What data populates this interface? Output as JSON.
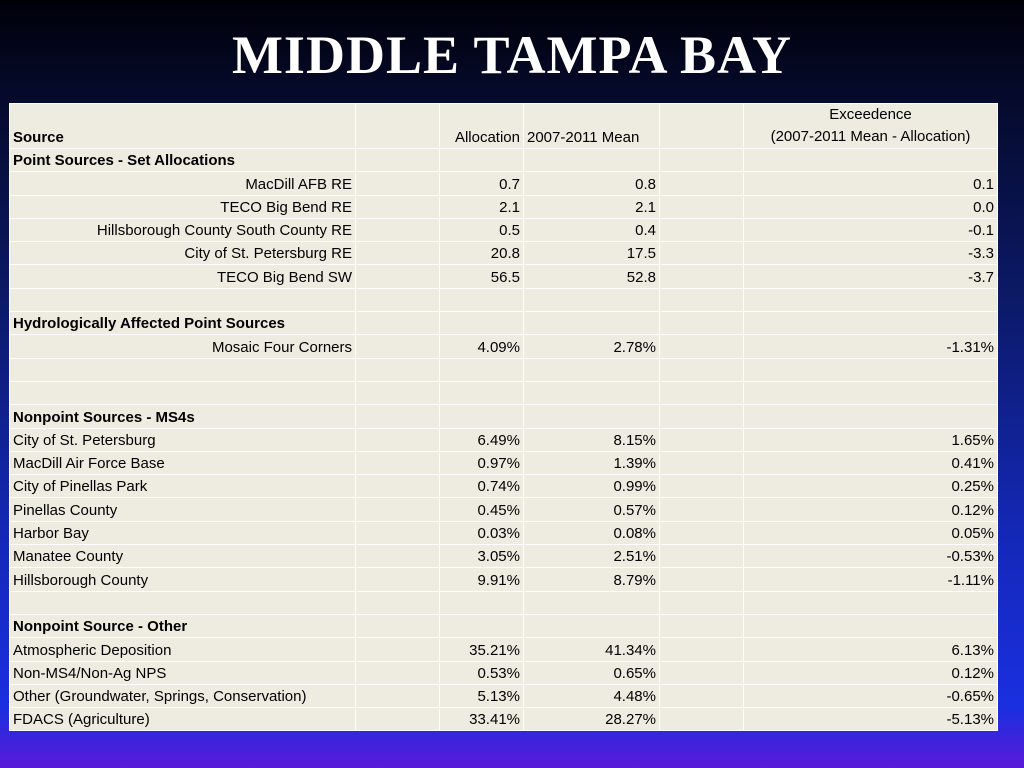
{
  "title": "MIDDLE TAMPA BAY",
  "header": {
    "source": "Source",
    "allocation": "Allocation",
    "mean": "2007-2011 Mean",
    "exceedence_line1": "Exceedence",
    "exceedence_line2": "(2007-2011 Mean - Allocation)"
  },
  "rows": [
    {
      "type": "section",
      "label": "Point Sources - Set Allocations"
    },
    {
      "type": "data",
      "align": "right",
      "label": "MacDill AFB RE",
      "allocation": "0.7",
      "mean": "0.8",
      "exceedence": "0.1"
    },
    {
      "type": "data",
      "align": "right",
      "label": "TECO Big Bend RE",
      "allocation": "2.1",
      "mean": "2.1",
      "exceedence": "0.0"
    },
    {
      "type": "data",
      "align": "right",
      "label": "Hillsborough County South County RE",
      "allocation": "0.5",
      "mean": "0.4",
      "exceedence": "-0.1"
    },
    {
      "type": "data",
      "align": "right",
      "label": "City of St. Petersburg RE",
      "allocation": "20.8",
      "mean": "17.5",
      "exceedence": "-3.3"
    },
    {
      "type": "data",
      "align": "right",
      "label": "TECO Big Bend SW",
      "allocation": "56.5",
      "mean": "52.8",
      "exceedence": "-3.7"
    },
    {
      "type": "blank"
    },
    {
      "type": "section",
      "label": "Hydrologically Affected Point Sources"
    },
    {
      "type": "data",
      "align": "right",
      "label": "Mosaic Four Corners",
      "allocation": "4.09%",
      "mean": "2.78%",
      "exceedence": "-1.31%"
    },
    {
      "type": "blank"
    },
    {
      "type": "blank"
    },
    {
      "type": "section",
      "label": "Nonpoint Sources - MS4s"
    },
    {
      "type": "data",
      "align": "left",
      "label": "City of St. Petersburg",
      "allocation": "6.49%",
      "mean": "8.15%",
      "exceedence": "1.65%"
    },
    {
      "type": "data",
      "align": "left",
      "label": "MacDill Air Force Base",
      "allocation": "0.97%",
      "mean": "1.39%",
      "exceedence": "0.41%"
    },
    {
      "type": "data",
      "align": "left",
      "label": "City of Pinellas Park",
      "allocation": "0.74%",
      "mean": "0.99%",
      "exceedence": "0.25%"
    },
    {
      "type": "data",
      "align": "left",
      "label": "Pinellas County",
      "allocation": "0.45%",
      "mean": "0.57%",
      "exceedence": "0.12%"
    },
    {
      "type": "data",
      "align": "left",
      "label": "Harbor Bay",
      "allocation": "0.03%",
      "mean": "0.08%",
      "exceedence": "0.05%"
    },
    {
      "type": "data",
      "align": "left",
      "label": "Manatee County",
      "allocation": "3.05%",
      "mean": "2.51%",
      "exceedence": "-0.53%"
    },
    {
      "type": "data",
      "align": "left",
      "label": "Hillsborough County",
      "allocation": "9.91%",
      "mean": "8.79%",
      "exceedence": "-1.11%"
    },
    {
      "type": "blank"
    },
    {
      "type": "section",
      "label": "Nonpoint Source - Other"
    },
    {
      "type": "data",
      "align": "left",
      "label": "Atmospheric Deposition",
      "allocation": "35.21%",
      "mean": "41.34%",
      "exceedence": "6.13%"
    },
    {
      "type": "data",
      "align": "left",
      "label": "Non-MS4/Non-Ag NPS",
      "allocation": "0.53%",
      "mean": "0.65%",
      "exceedence": "0.12%"
    },
    {
      "type": "data",
      "align": "left",
      "label": "Other (Groundwater, Springs, Conservation)",
      "allocation": "5.13%",
      "mean": "4.48%",
      "exceedence": "-0.65%"
    },
    {
      "type": "data",
      "align": "left",
      "label": "FDACS (Agriculture)",
      "allocation": "33.41%",
      "mean": "28.27%",
      "exceedence": "-5.13%"
    }
  ]
}
